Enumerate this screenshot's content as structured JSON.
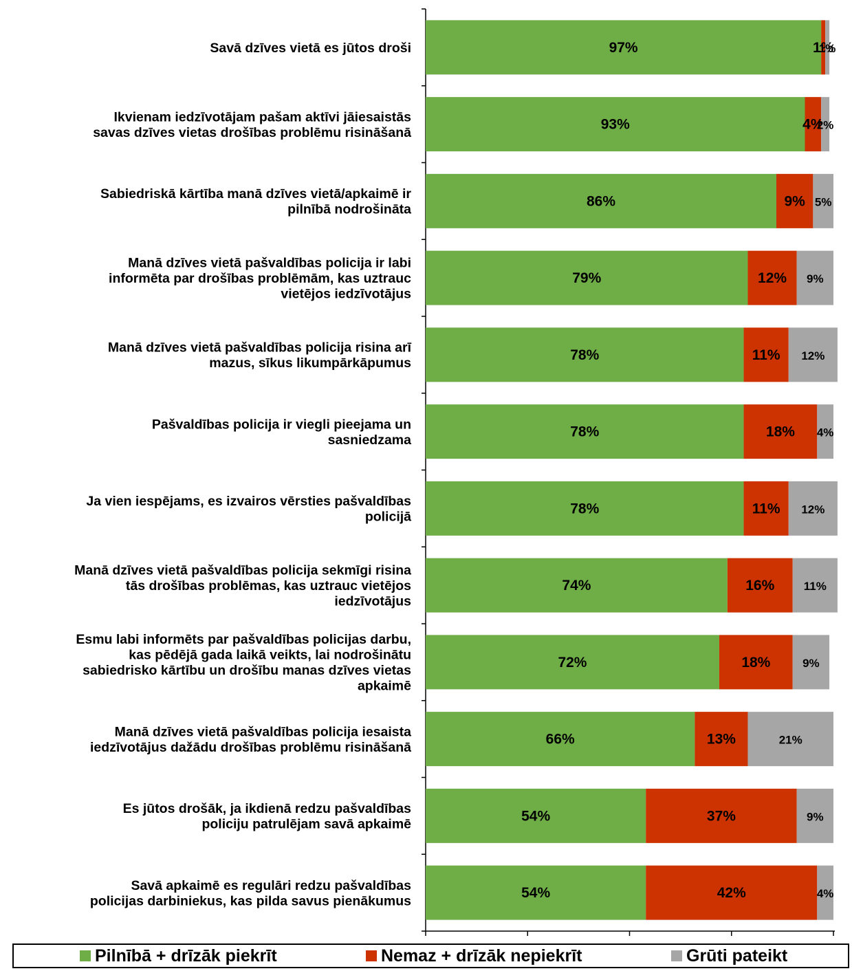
{
  "chart_data": {
    "type": "bar",
    "orientation": "horizontal",
    "stacked": true,
    "xlim": [
      0,
      100
    ],
    "categories": [
      [
        "Savā dzīves vietā es jūtos droši"
      ],
      [
        "Ikvienam iedzīvotājam pašam aktīvi jāiesaistās",
        "savas dzīves vietas drošības problēmu risināšanā"
      ],
      [
        "Sabiedriskā kārtība manā dzīves vietā/apkaimē ir",
        "pilnībā nodrošināta"
      ],
      [
        "Manā dzīves vietā pašvaldības policija ir labi",
        "informēta par drošības problēmām, kas uztrauc",
        "vietējos iedzīvotājus"
      ],
      [
        "Manā dzīves vietā pašvaldības policija risina arī",
        "mazus, sīkus likumpārkāpumus"
      ],
      [
        "Pašvaldības policija ir viegli pieejama un",
        "sasniedzama"
      ],
      [
        "Ja vien iespējams, es izvairos vērsties pašvaldības",
        "policijā"
      ],
      [
        "Manā dzīves vietā pašvaldības policija sekmīgi risina",
        "tās drošības problēmas, kas uztrauc vietējos",
        "iedzīvotājus"
      ],
      [
        "Esmu labi informēts par pašvaldības policijas darbu,",
        "kas pēdējā gada laikā veikts, lai nodrošinātu",
        "sabiedrisko kārtību un drošību manas dzīves vietas",
        "apkaimē"
      ],
      [
        "Manā dzīves vietā pašvaldības policija iesaista",
        "iedzīvotājus dažādu drošības problēmu risināšanā"
      ],
      [
        "Es jūtos drošāk, ja ikdienā redzu pašvaldības",
        "policiju patrulējam savā apkaimē"
      ],
      [
        "Savā apkaimē es regulāri redzu pašvaldības",
        "policijas darbiniekus, kas pilda savus pienākumus"
      ]
    ],
    "series": [
      {
        "name": "Pilnībā + drīzāk piekrīt",
        "color": "#6fad47",
        "values": [
          97,
          93,
          86,
          79,
          78,
          78,
          78,
          74,
          72,
          66,
          54,
          54
        ],
        "labels": [
          "97%",
          "93%",
          "86%",
          "79%",
          "78%",
          "78%",
          "78%",
          "74%",
          "72%",
          "66%",
          "54%",
          "54%"
        ]
      },
      {
        "name": "Nemaz + drīzāk nepiekrīt",
        "color": "#cc3300",
        "values": [
          1,
          4,
          9,
          12,
          11,
          18,
          11,
          16,
          18,
          13,
          37,
          42
        ],
        "labels": [
          "1%",
          "4%",
          "9%",
          "12%",
          "11%",
          "18%",
          "11%",
          "16%",
          "18%",
          "13%",
          "37%",
          "42%"
        ]
      },
      {
        "name": "Grūti pateikt",
        "color": "#a6a6a6",
        "values": [
          1,
          2,
          5,
          9,
          12,
          4,
          12,
          11,
          9,
          21,
          9,
          4
        ],
        "labels": [
          "1%",
          "2%",
          "5%",
          "9%",
          "12%",
          "4%",
          "12%",
          "11%",
          "9%",
          "21%",
          "9%",
          "4%"
        ]
      }
    ],
    "legend": {
      "position": "bottom"
    }
  }
}
